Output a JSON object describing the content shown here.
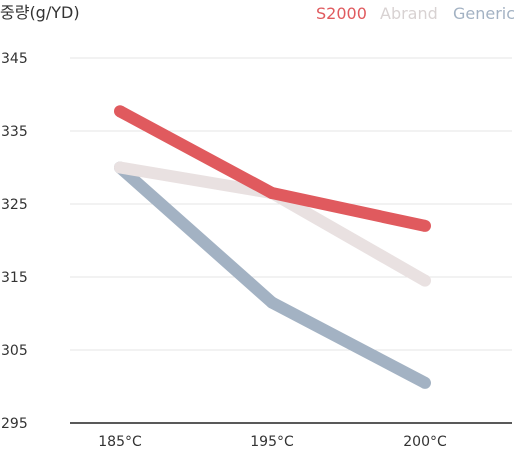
{
  "chart_data": {
    "type": "line",
    "ylabel": "중량(g/YD)",
    "xlabel": "",
    "categories": [
      "185°C",
      "195°C",
      "200°C"
    ],
    "yticks": [
      295,
      305,
      315,
      325,
      335,
      345
    ],
    "ylim": [
      295,
      345
    ],
    "grid": true,
    "legend_position": "top-right",
    "series": [
      {
        "name": "S2000",
        "color": "#e05a5e",
        "values": [
          337.7,
          326.5,
          322.0
        ]
      },
      {
        "name": "Abrand",
        "color": "#e9e1e1",
        "values": [
          330.0,
          326.5,
          314.5
        ]
      },
      {
        "name": "Generic",
        "color": "#a3b2c3",
        "values": [
          330.0,
          311.5,
          300.5
        ]
      }
    ],
    "colors": {
      "legend_s2000": "#e05a5e",
      "legend_abrand": "#d8d2d2",
      "legend_generic": "#a3b2c3",
      "gridline": "#e6e6e6",
      "axis": "#222222"
    }
  }
}
